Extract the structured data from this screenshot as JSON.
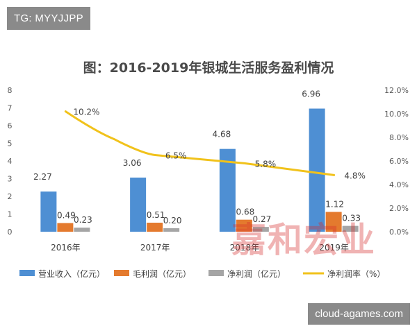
{
  "overlays": {
    "tg_label": "TG: MYYJJPP",
    "source_label": "cloud-agames.com",
    "watermark_text": "嘉和宏业"
  },
  "chart_data": {
    "type": "bar",
    "title": "图：2016-2019年银城生活服务盈利情况",
    "categories": [
      "2016年",
      "2017年",
      "2018年",
      "2019年"
    ],
    "series": [
      {
        "name": "营业收入（亿元）",
        "type": "bar",
        "axis": "left",
        "color": "#4e8fd3",
        "values": [
          2.27,
          3.06,
          4.68,
          6.96
        ],
        "labels": [
          "2.27",
          "3.06",
          "4.68",
          "6.96"
        ]
      },
      {
        "name": "毛利润（亿元）",
        "type": "bar",
        "axis": "left",
        "color": "#e47a2e",
        "values": [
          0.49,
          0.51,
          0.68,
          1.12
        ],
        "labels": [
          "0.49",
          "0.51",
          "0.68",
          "1.12"
        ]
      },
      {
        "name": "净利润（亿元）",
        "type": "bar",
        "axis": "left",
        "color": "#a5a5a5",
        "values": [
          0.23,
          0.2,
          0.27,
          0.33
        ],
        "labels": [
          "0.23",
          "0.20",
          "0.27",
          "0.33"
        ]
      },
      {
        "name": "净利润率（%）",
        "type": "line",
        "axis": "right",
        "color": "#f1c21b",
        "values": [
          10.2,
          6.5,
          5.8,
          4.8
        ],
        "labels": [
          "10.2%",
          "6.5%",
          "5.8%",
          "4.8%"
        ]
      }
    ],
    "y_left": {
      "ylim": [
        0,
        8
      ],
      "ticks": [
        "0",
        "1",
        "2",
        "3",
        "4",
        "5",
        "6",
        "7",
        "8"
      ]
    },
    "y_right": {
      "ylim": [
        0,
        12
      ],
      "ticks": [
        "0.0%",
        "2.0%",
        "4.0%",
        "6.0%",
        "8.0%",
        "10.0%",
        "12.0%"
      ]
    },
    "grid": false,
    "legend_position": "bottom"
  }
}
